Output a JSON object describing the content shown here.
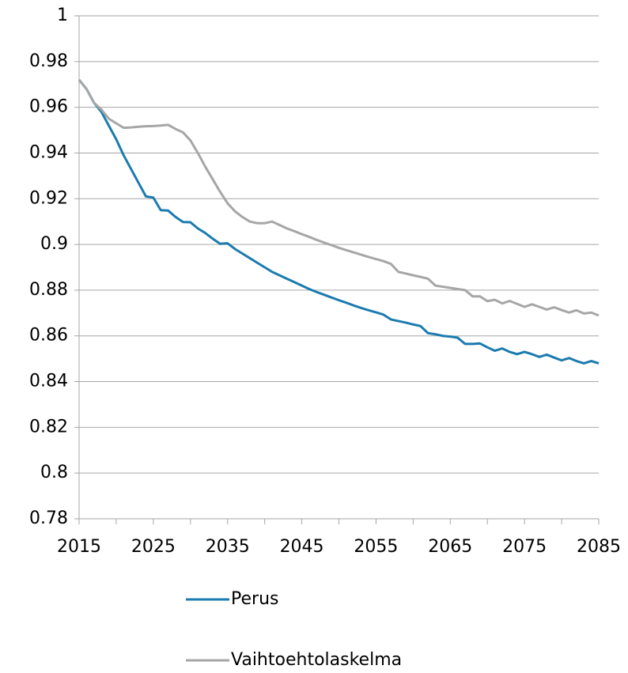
{
  "chart_data": {
    "type": "line",
    "x": [
      2015,
      2016,
      2017,
      2018,
      2019,
      2020,
      2021,
      2022,
      2023,
      2024,
      2025,
      2026,
      2027,
      2028,
      2029,
      2030,
      2031,
      2032,
      2033,
      2034,
      2035,
      2036,
      2037,
      2038,
      2039,
      2040,
      2041,
      2042,
      2043,
      2044,
      2045,
      2046,
      2047,
      2048,
      2049,
      2050,
      2051,
      2052,
      2053,
      2054,
      2055,
      2056,
      2057,
      2058,
      2059,
      2060,
      2061,
      2062,
      2063,
      2064,
      2065,
      2066,
      2067,
      2068,
      2069,
      2070,
      2071,
      2072,
      2073,
      2074,
      2075,
      2076,
      2077,
      2078,
      2079,
      2080,
      2081,
      2082,
      2083,
      2084,
      2085
    ],
    "series": [
      {
        "name": "Perus",
        "color": "#1b7bae",
        "values": [
          0.972,
          0.968,
          0.962,
          0.958,
          0.952,
          0.946,
          0.939,
          0.933,
          0.927,
          0.921,
          0.9205,
          0.915,
          0.9148,
          0.912,
          0.9098,
          0.9097,
          0.907,
          0.905,
          0.9025,
          0.9003,
          0.9005,
          0.898,
          0.896,
          0.894,
          0.892,
          0.89,
          0.888,
          0.8865,
          0.885,
          0.8835,
          0.882,
          0.8805,
          0.8792,
          0.878,
          0.8768,
          0.8756,
          0.8745,
          0.8733,
          0.8722,
          0.8712,
          0.8703,
          0.8693,
          0.8672,
          0.8665,
          0.8658,
          0.865,
          0.8643,
          0.8612,
          0.8607,
          0.86,
          0.8597,
          0.8592,
          0.8565,
          0.8565,
          0.8567,
          0.855,
          0.8535,
          0.8545,
          0.853,
          0.852,
          0.853,
          0.852,
          0.8508,
          0.8518,
          0.8505,
          0.8493,
          0.8503,
          0.849,
          0.848,
          0.849,
          0.848
        ]
      },
      {
        "name": "Vaihtoehtolaskelma",
        "color": "#a6a6a6",
        "values": [
          0.972,
          0.968,
          0.962,
          0.959,
          0.955,
          0.953,
          0.951,
          0.9512,
          0.9515,
          0.9517,
          0.9518,
          0.952,
          0.9523,
          0.9505,
          0.949,
          0.9455,
          0.94,
          0.934,
          0.9285,
          0.923,
          0.918,
          0.9145,
          0.912,
          0.91,
          0.9093,
          0.9093,
          0.91,
          0.9085,
          0.907,
          0.9058,
          0.9045,
          0.9033,
          0.902,
          0.9008,
          0.8997,
          0.8985,
          0.8975,
          0.8965,
          0.8955,
          0.8945,
          0.8936,
          0.8927,
          0.8915,
          0.888,
          0.8873,
          0.8865,
          0.8858,
          0.885,
          0.882,
          0.8815,
          0.881,
          0.8805,
          0.88,
          0.8773,
          0.8773,
          0.8752,
          0.8758,
          0.8742,
          0.8753,
          0.874,
          0.8727,
          0.8738,
          0.8727,
          0.8715,
          0.8725,
          0.8713,
          0.8702,
          0.8712,
          0.8698,
          0.8702,
          0.8689
        ]
      }
    ],
    "xlim": [
      2015,
      2085
    ],
    "xticks": [
      2015,
      2025,
      2035,
      2045,
      2055,
      2065,
      2075,
      2085
    ],
    "xminor_ticks": [
      2020,
      2030,
      2040,
      2050,
      2060,
      2070,
      2080
    ],
    "ylim": [
      0.78,
      1
    ],
    "yticks": [
      0.78,
      0.8,
      0.82,
      0.84,
      0.86,
      0.88,
      0.9,
      0.92,
      0.94,
      0.96,
      0.98,
      1
    ],
    "grid": true,
    "legend": "bottom"
  }
}
